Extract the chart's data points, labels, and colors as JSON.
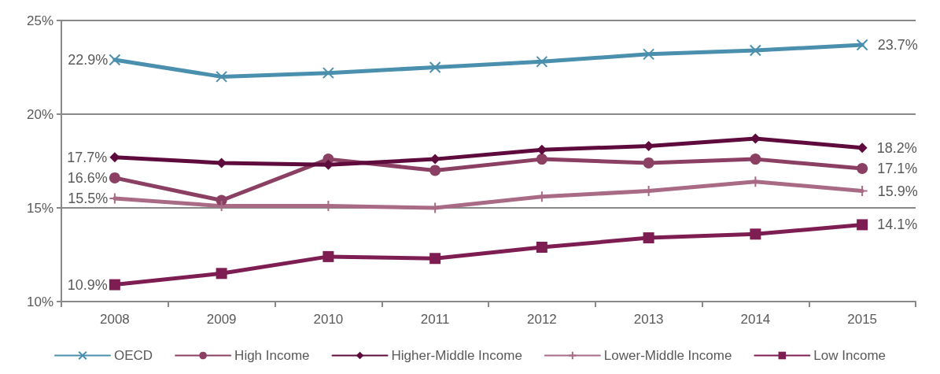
{
  "chart_data": {
    "type": "line",
    "categories": [
      "2008",
      "2009",
      "2010",
      "2011",
      "2012",
      "2013",
      "2014",
      "2015"
    ],
    "ylim": [
      10,
      25
    ],
    "yticks": [
      {
        "value": 10,
        "label": "10%"
      },
      {
        "value": 15,
        "label": "15%"
      },
      {
        "value": 20,
        "label": "20%"
      },
      {
        "value": 25,
        "label": "25%"
      }
    ],
    "grid": "y",
    "legend": "bottom",
    "series": [
      {
        "name": "OECD",
        "color": "#4a8fad",
        "marker": "cross",
        "values": [
          22.9,
          22.0,
          22.2,
          22.5,
          22.8,
          23.2,
          23.4,
          23.7
        ],
        "value_labels": [
          "22.9%",
          null,
          null,
          null,
          null,
          null,
          null,
          "23.7%"
        ]
      },
      {
        "name": "High Income",
        "color": "#8b4063",
        "marker": "circle",
        "values": [
          16.6,
          15.4,
          17.6,
          17.0,
          17.6,
          17.4,
          17.6,
          17.1
        ],
        "value_labels": [
          "16.6%",
          null,
          null,
          null,
          null,
          null,
          null,
          "17.1%"
        ]
      },
      {
        "name": "Higher-Middle Income",
        "color": "#5e0a3c",
        "marker": "diamond",
        "values": [
          17.7,
          17.4,
          17.3,
          17.6,
          18.1,
          18.3,
          18.7,
          18.2
        ],
        "value_labels": [
          "17.7%",
          null,
          null,
          null,
          null,
          null,
          null,
          "18.2%"
        ]
      },
      {
        "name": "Lower-Middle Income",
        "color": "#a86a85",
        "marker": "plus",
        "values": [
          15.5,
          15.1,
          15.1,
          15.0,
          15.6,
          15.9,
          16.4,
          15.9
        ],
        "value_labels": [
          "15.5%",
          null,
          null,
          null,
          null,
          null,
          null,
          "15.9%"
        ]
      },
      {
        "name": "Low Income",
        "color": "#7e1d52",
        "marker": "square",
        "values": [
          10.9,
          11.5,
          12.4,
          12.3,
          12.9,
          13.4,
          13.6,
          14.1
        ],
        "value_labels": [
          "10.9%",
          null,
          null,
          null,
          null,
          null,
          null,
          "14.1%"
        ]
      }
    ]
  }
}
